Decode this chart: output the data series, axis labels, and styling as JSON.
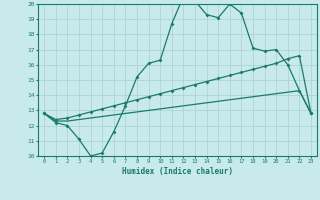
{
  "title": "",
  "xlabel": "Humidex (Indice chaleur)",
  "bg_color": "#c8eaea",
  "line_color": "#1a7a6e",
  "grid_color": "#a8d0d0",
  "xlim": [
    -0.5,
    23.5
  ],
  "ylim": [
    10,
    20
  ],
  "xticks": [
    0,
    1,
    2,
    3,
    4,
    5,
    6,
    7,
    8,
    9,
    10,
    11,
    12,
    13,
    14,
    15,
    16,
    17,
    18,
    19,
    20,
    21,
    22,
    23
  ],
  "yticks": [
    10,
    11,
    12,
    13,
    14,
    15,
    16,
    17,
    18,
    19,
    20
  ],
  "line1_x": [
    0,
    1,
    2,
    3,
    4,
    5,
    6,
    7,
    8,
    9,
    10,
    11,
    12,
    13,
    14,
    15,
    16,
    17,
    18,
    19,
    20,
    21,
    22,
    23
  ],
  "line1_y": [
    12.8,
    12.2,
    12.0,
    11.1,
    10.0,
    10.2,
    11.6,
    13.3,
    15.2,
    16.1,
    16.3,
    18.7,
    20.5,
    20.2,
    19.3,
    19.1,
    20.0,
    19.4,
    17.1,
    16.9,
    17.0,
    16.0,
    14.3,
    12.8
  ],
  "line2_x": [
    0,
    1,
    2,
    3,
    4,
    5,
    6,
    7,
    8,
    9,
    10,
    11,
    12,
    13,
    14,
    15,
    16,
    17,
    18,
    19,
    20,
    21,
    22,
    23
  ],
  "line2_y": [
    12.8,
    12.4,
    12.5,
    12.7,
    12.9,
    13.1,
    13.3,
    13.5,
    13.7,
    13.9,
    14.1,
    14.3,
    14.5,
    14.7,
    14.9,
    15.1,
    15.3,
    15.5,
    15.7,
    15.9,
    16.1,
    16.4,
    16.6,
    12.8
  ],
  "line3_x": [
    0,
    1,
    2,
    3,
    4,
    5,
    6,
    7,
    8,
    9,
    10,
    11,
    12,
    13,
    14,
    15,
    16,
    17,
    18,
    19,
    20,
    21,
    22,
    23
  ],
  "line3_y": [
    12.8,
    12.3,
    12.3,
    12.4,
    12.5,
    12.6,
    12.7,
    12.8,
    12.9,
    13.0,
    13.1,
    13.2,
    13.3,
    13.4,
    13.5,
    13.6,
    13.7,
    13.8,
    13.9,
    14.0,
    14.1,
    14.2,
    14.3,
    12.8
  ]
}
